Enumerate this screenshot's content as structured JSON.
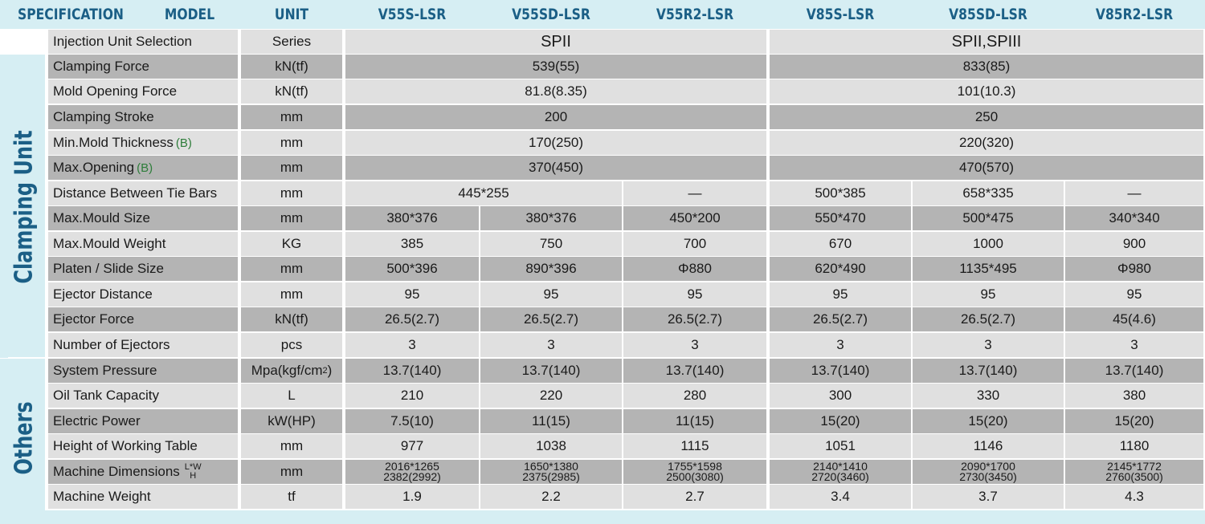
{
  "header": {
    "specification": "SPECIFICATION",
    "model": "MODEL",
    "unit": "UNIT",
    "models": [
      "V55S-LSR",
      "V55SD-LSR",
      "V55R2-LSR",
      "V85S-LSR",
      "V85SD-LSR",
      "V85R2-LSR"
    ]
  },
  "groups": {
    "clamping": "Clamping Unit",
    "others": "Others"
  },
  "row_note_b": "(B)",
  "dims_label_lw": "L*W",
  "dims_label_h": "H",
  "rows": [
    {
      "name": "Injection Unit Selection",
      "unit": "Series",
      "values": [
        "SPII",
        "SPII,SPIII"
      ]
    },
    {
      "name": "Clamping Force",
      "unit": "kN(tf)",
      "values": [
        "539(55)",
        "833(85)"
      ]
    },
    {
      "name": "Mold Opening Force",
      "unit": "kN(tf)",
      "values": [
        "81.8(8.35)",
        "101(10.3)"
      ]
    },
    {
      "name": "Clamping Stroke",
      "unit": "mm",
      "values": [
        "200",
        "250"
      ]
    },
    {
      "name": "Min.Mold Thickness",
      "unit": "mm",
      "values": [
        "170(250)",
        "220(320)"
      ]
    },
    {
      "name": "Max.Opening",
      "unit": "mm",
      "values": [
        "370(450)",
        "470(570)"
      ]
    },
    {
      "name": "Distance Between Tie Bars",
      "unit": "mm",
      "values": [
        "445*255",
        "—",
        "500*385",
        "658*335",
        "—"
      ]
    },
    {
      "name": "Max.Mould  Size",
      "unit": "mm",
      "values": [
        "380*376",
        "380*376",
        "450*200",
        "550*470",
        "500*475",
        "340*340"
      ]
    },
    {
      "name": "Max.Mould  Weight",
      "unit": "KG",
      "values": [
        "385",
        "750",
        "700",
        "670",
        "1000",
        "900"
      ]
    },
    {
      "name": "Platen /  Slide Size",
      "unit": "mm",
      "values": [
        "500*396",
        "890*396",
        "Φ880",
        "620*490",
        "1135*495",
        "Φ980"
      ]
    },
    {
      "name": "Ejector Distance",
      "unit": "mm",
      "values": [
        "95",
        "95",
        "95",
        "95",
        "95",
        "95"
      ]
    },
    {
      "name": "Ejector Force",
      "unit": "kN(tf)",
      "values": [
        "26.5(2.7)",
        "26.5(2.7)",
        "26.5(2.7)",
        "26.5(2.7)",
        "26.5(2.7)",
        "45(4.6)"
      ]
    },
    {
      "name": "Number of Ejectors",
      "unit": "pcs",
      "values": [
        "3",
        "3",
        "3",
        "3",
        "3",
        "3"
      ]
    },
    {
      "name": "System Pressure",
      "unit": "Mpa(kgf/cm",
      "unit_sup": "2",
      "unit_tail": " )",
      "values": [
        "13.7(140)",
        "13.7(140)",
        "13.7(140)",
        "13.7(140)",
        "13.7(140)",
        "13.7(140)"
      ]
    },
    {
      "name": "Oil Tank Capacity",
      "unit": "L",
      "values": [
        "210",
        "220",
        "280",
        "300",
        "330",
        "380"
      ]
    },
    {
      "name": "Electric Power",
      "unit": "kW(HP)",
      "values": [
        "7.5(10)",
        "11(15)",
        "11(15)",
        "15(20)",
        "15(20)",
        "15(20)"
      ]
    },
    {
      "name": "Height of Working Table",
      "unit": "mm",
      "values": [
        "977",
        "1038",
        "1115",
        "1051",
        "1146",
        "1180"
      ]
    },
    {
      "name": "Machine Dimensions",
      "unit": "mm",
      "values": [
        [
          "2016*1265",
          "2382(2992)"
        ],
        [
          "1650*1380",
          "2375(2985)"
        ],
        [
          "1755*1598",
          "2500(3080)"
        ],
        [
          "2140*1410",
          "2720(3460)"
        ],
        [
          "2090*1700",
          "2730(3450)"
        ],
        [
          "2145*1772",
          "2760(3500)"
        ]
      ]
    },
    {
      "name": "Machine Weight",
      "unit": "tf",
      "values": [
        "1.9",
        "2.2",
        "2.7",
        "3.4",
        "3.7",
        "4.3"
      ]
    }
  ],
  "colors": {
    "header_bg": "#d6eef3",
    "header_text": "#1b5f86",
    "row_dark": "#b4b4b4",
    "row_light": "#e0e0e0",
    "note_green": "#2e7d3a"
  }
}
